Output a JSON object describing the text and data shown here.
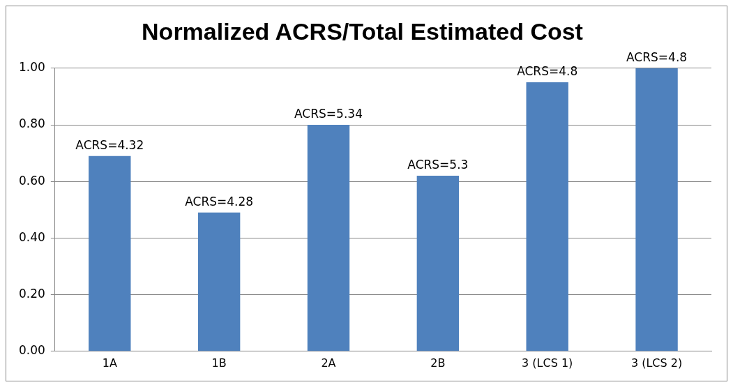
{
  "chart_data": {
    "type": "bar",
    "title": "Normalized ACRS/Total Estimated Cost",
    "categories": [
      "1A",
      "1B",
      "2A",
      "2B",
      "3 (LCS 1)",
      "3 (LCS 2)"
    ],
    "values": [
      0.69,
      0.49,
      0.8,
      0.62,
      0.95,
      1.0
    ],
    "annotations": [
      {
        "text": "ACRS=4.32",
        "x": "1A",
        "y": 0.69
      },
      {
        "text": "ACRS=4.28",
        "x": "1B",
        "y": 0.49
      },
      {
        "text": "ACRS=5.34",
        "x": "2A",
        "y": 0.8
      },
      {
        "text": "ACRS=5.3",
        "x": "2B",
        "y": 0.62
      },
      {
        "text": "ACRS=4.8",
        "x": "3 (LCS 1)",
        "y": 0.95
      },
      {
        "text": "ACRS=4.8",
        "x": "3 (LCS 2)",
        "y": 1.0
      }
    ],
    "color": "#4f81bd",
    "ylim": [
      0,
      1
    ],
    "yticks": [
      {
        "value": 0,
        "label": "0.00"
      },
      {
        "value": 0.2,
        "label": "0.20"
      },
      {
        "value": 0.4,
        "label": "0.40"
      },
      {
        "value": 0.6,
        "label": "0.60"
      },
      {
        "value": 0.8,
        "label": "0.80"
      },
      {
        "value": 1,
        "label": "1.00"
      }
    ],
    "grid": "y",
    "legend": false
  }
}
